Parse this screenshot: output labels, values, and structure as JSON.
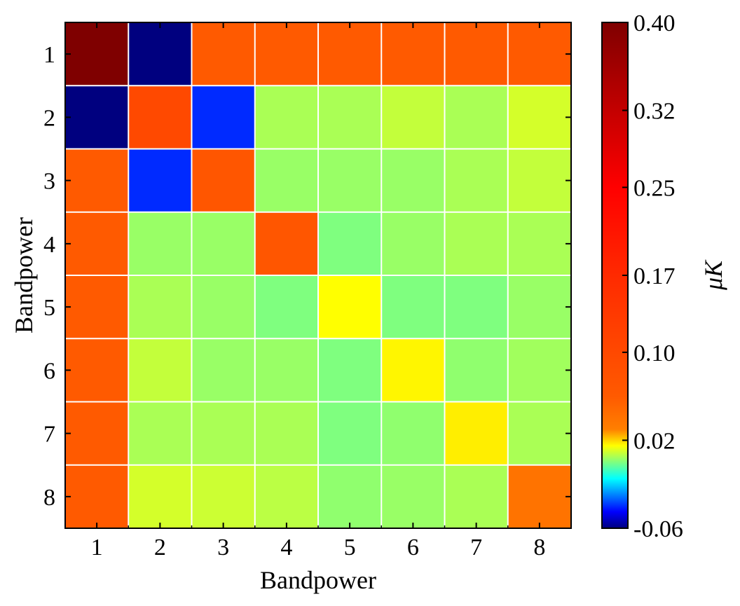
{
  "chart_data": {
    "type": "heatmap",
    "title": "",
    "xlabel": "Bandpower",
    "ylabel": "Bandpower",
    "x_categories": [
      "1",
      "2",
      "3",
      "4",
      "5",
      "6",
      "7",
      "8"
    ],
    "y_categories": [
      "1",
      "2",
      "3",
      "4",
      "5",
      "6",
      "7",
      "8"
    ],
    "values": [
      [
        0.4,
        -0.06,
        0.06,
        0.06,
        0.06,
        0.06,
        0.06,
        0.06
      ],
      [
        -0.06,
        0.1,
        -0.04,
        0.005,
        0.005,
        0.008,
        0.005,
        0.01
      ],
      [
        0.06,
        -0.04,
        0.07,
        0.003,
        0.003,
        0.003,
        0.005,
        0.008
      ],
      [
        0.06,
        0.003,
        0.003,
        0.07,
        0.0,
        0.003,
        0.005,
        0.005
      ],
      [
        0.06,
        0.005,
        0.003,
        0.0,
        0.015,
        0.0,
        0.0,
        0.003
      ],
      [
        0.06,
        0.008,
        0.003,
        0.003,
        0.0,
        0.016,
        0.002,
        0.004
      ],
      [
        0.06,
        0.005,
        0.005,
        0.005,
        0.0,
        0.002,
        0.017,
        0.005
      ],
      [
        0.06,
        0.01,
        0.009,
        0.007,
        0.002,
        0.003,
        0.005,
        0.04
      ]
    ],
    "colorbar": {
      "label": "μK",
      "min": -0.06,
      "max": 0.4,
      "tick_values": [
        0.4,
        0.32,
        0.25,
        0.17,
        0.1,
        0.02,
        -0.06
      ],
      "tick_labels": [
        "0.40",
        "0.32",
        "0.25",
        "0.17",
        "0.10",
        "0.02",
        "-0.06"
      ]
    },
    "grid": true,
    "colormap": [
      [
        -0.06,
        "#00007f"
      ],
      [
        -0.045,
        "#0000ff"
      ],
      [
        -0.03,
        "#007fff"
      ],
      [
        -0.015,
        "#00ffff"
      ],
      [
        0.0,
        "#7fff7f"
      ],
      [
        0.015,
        "#ffff00"
      ],
      [
        0.03,
        "#ff7f00"
      ],
      [
        0.06,
        "#ff5a00"
      ],
      [
        0.17,
        "#ff2a00"
      ],
      [
        0.25,
        "#ff0000"
      ],
      [
        0.4,
        "#7f0000"
      ]
    ]
  }
}
